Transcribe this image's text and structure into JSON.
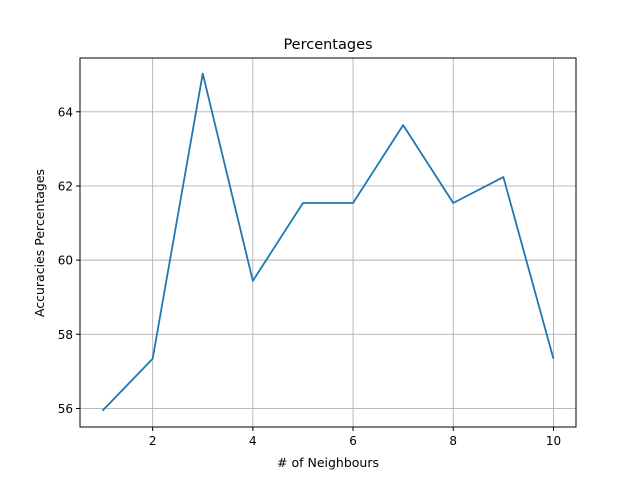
{
  "chart_data": {
    "type": "line",
    "title": "Percentages",
    "xlabel": "# of Neighbours",
    "ylabel": "Accuracies Percentages",
    "x": [
      1,
      2,
      3,
      4,
      5,
      6,
      7,
      8,
      9,
      10
    ],
    "series": [
      {
        "values": [
          55.94,
          57.34,
          65.03,
          59.44,
          61.54,
          61.54,
          63.64,
          61.54,
          62.24,
          57.34
        ]
      }
    ],
    "xlim": [
      0.55,
      10.45
    ],
    "ylim": [
      55.5,
      65.45
    ],
    "xticks": [
      2,
      4,
      6,
      8,
      10
    ],
    "yticks": [
      56,
      58,
      60,
      62,
      64
    ],
    "grid": true,
    "colors": {
      "line": "#1f77b4",
      "grid": "#b0b0b0",
      "axes": "#000000"
    }
  }
}
